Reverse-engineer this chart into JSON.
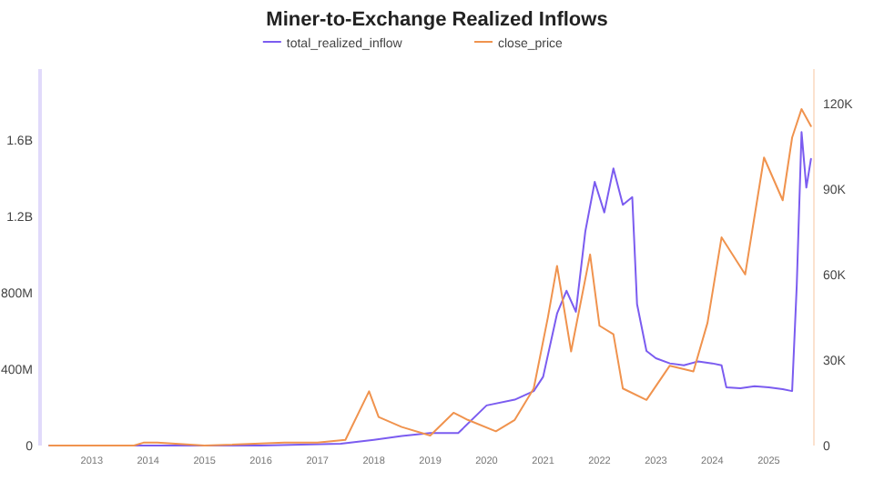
{
  "chart_data": {
    "type": "line",
    "title": "Miner-to-Exchange Realized Inflows",
    "legend": "top",
    "xlim": [
      "2012-02-01",
      "2025-10-20"
    ],
    "xticks": [
      {
        "value": "2013",
        "label": "2013"
      },
      {
        "value": "2014",
        "label": "2014"
      },
      {
        "value": "2015",
        "label": "2015"
      },
      {
        "value": "2016",
        "label": "2016"
      },
      {
        "value": "2017",
        "label": "2017"
      },
      {
        "value": "2018",
        "label": "2018"
      },
      {
        "value": "2019",
        "label": "2019"
      },
      {
        "value": "2020",
        "label": "2020"
      },
      {
        "value": "2021",
        "label": "2021"
      },
      {
        "value": "2022",
        "label": "2022"
      },
      {
        "value": "2023",
        "label": "2023"
      },
      {
        "value": "2024",
        "label": "2024"
      },
      {
        "value": "2025",
        "label": "2025"
      }
    ],
    "ylim": [
      0,
      1970000000
    ],
    "yticks": [
      0,
      {
        "value": 400000000,
        "label": "400M"
      },
      {
        "value": 800000000,
        "label": "800M"
      },
      {
        "value": 1200000000,
        "label": "1.2B"
      },
      {
        "value": 1600000000,
        "label": "1.6B"
      }
    ],
    "y2lim": [
      0,
      132000
    ],
    "y2ticks": [
      0,
      {
        "value": 30000,
        "label": "30K"
      },
      {
        "value": 60000,
        "label": "60K"
      },
      {
        "value": 90000,
        "label": "90K"
      },
      {
        "value": 120000,
        "label": "120K"
      }
    ],
    "series": [
      {
        "name": "total_realized_inflow",
        "color": "#7b5cf0",
        "x": [
          "2012-04",
          "2014-01",
          "2016-01",
          "2017-06",
          "2018-01",
          "2018-07",
          "2019-01",
          "2019-07",
          "2020-01",
          "2020-07",
          "2020-11",
          "2021-01",
          "2021-04",
          "2021-06",
          "2021-08",
          "2021-10",
          "2021-12",
          "2022-02",
          "2022-04",
          "2022-06",
          "2022-08",
          "2022-09",
          "2022-11",
          "2023-01",
          "2023-04",
          "2023-07",
          "2023-10",
          "2024-01",
          "2024-03",
          "2024-04",
          "2024-07",
          "2024-10",
          "2025-01",
          "2025-04",
          "2025-06",
          "2025-07",
          "2025-08",
          "2025-09",
          "2025-10"
        ],
        "values": [
          0,
          0,
          0,
          10000000,
          30000000,
          50000000,
          65000000,
          65000000,
          210000000,
          240000000,
          285000000,
          360000000,
          690000000,
          810000000,
          700000000,
          1120000000,
          1380000000,
          1220000000,
          1450000000,
          1260000000,
          1300000000,
          740000000,
          495000000,
          457000000,
          430000000,
          420000000,
          440000000,
          430000000,
          420000000,
          305000000,
          300000000,
          310000000,
          305000000,
          295000000,
          285000000,
          840000000,
          1640000000,
          1350000000,
          1500000000
        ]
      },
      {
        "name": "close_price",
        "color": "#f0934e",
        "axis": "y2",
        "x": [
          "2012-04",
          "2013-10",
          "2013-12",
          "2014-03",
          "2015-01",
          "2016-06",
          "2017-01",
          "2017-07",
          "2017-12",
          "2018-02",
          "2018-07",
          "2019-01",
          "2019-06",
          "2019-09",
          "2020-03",
          "2020-07",
          "2020-11",
          "2021-02",
          "2021-04",
          "2021-07",
          "2021-11",
          "2022-01",
          "2022-04",
          "2022-06",
          "2022-11",
          "2023-04",
          "2023-09",
          "2023-12",
          "2024-03",
          "2024-08",
          "2024-12",
          "2025-04",
          "2025-06",
          "2025-08",
          "2025-10"
        ],
        "values": [
          0,
          0,
          1000,
          1000,
          0,
          1000,
          1000,
          2000,
          19000,
          10000,
          6500,
          3500,
          11500,
          9000,
          5000,
          9000,
          20000,
          45000,
          63000,
          33000,
          67000,
          42000,
          39000,
          20000,
          16000,
          28000,
          26000,
          43000,
          73000,
          60000,
          101000,
          86000,
          108000,
          118000,
          112000
        ]
      }
    ]
  }
}
